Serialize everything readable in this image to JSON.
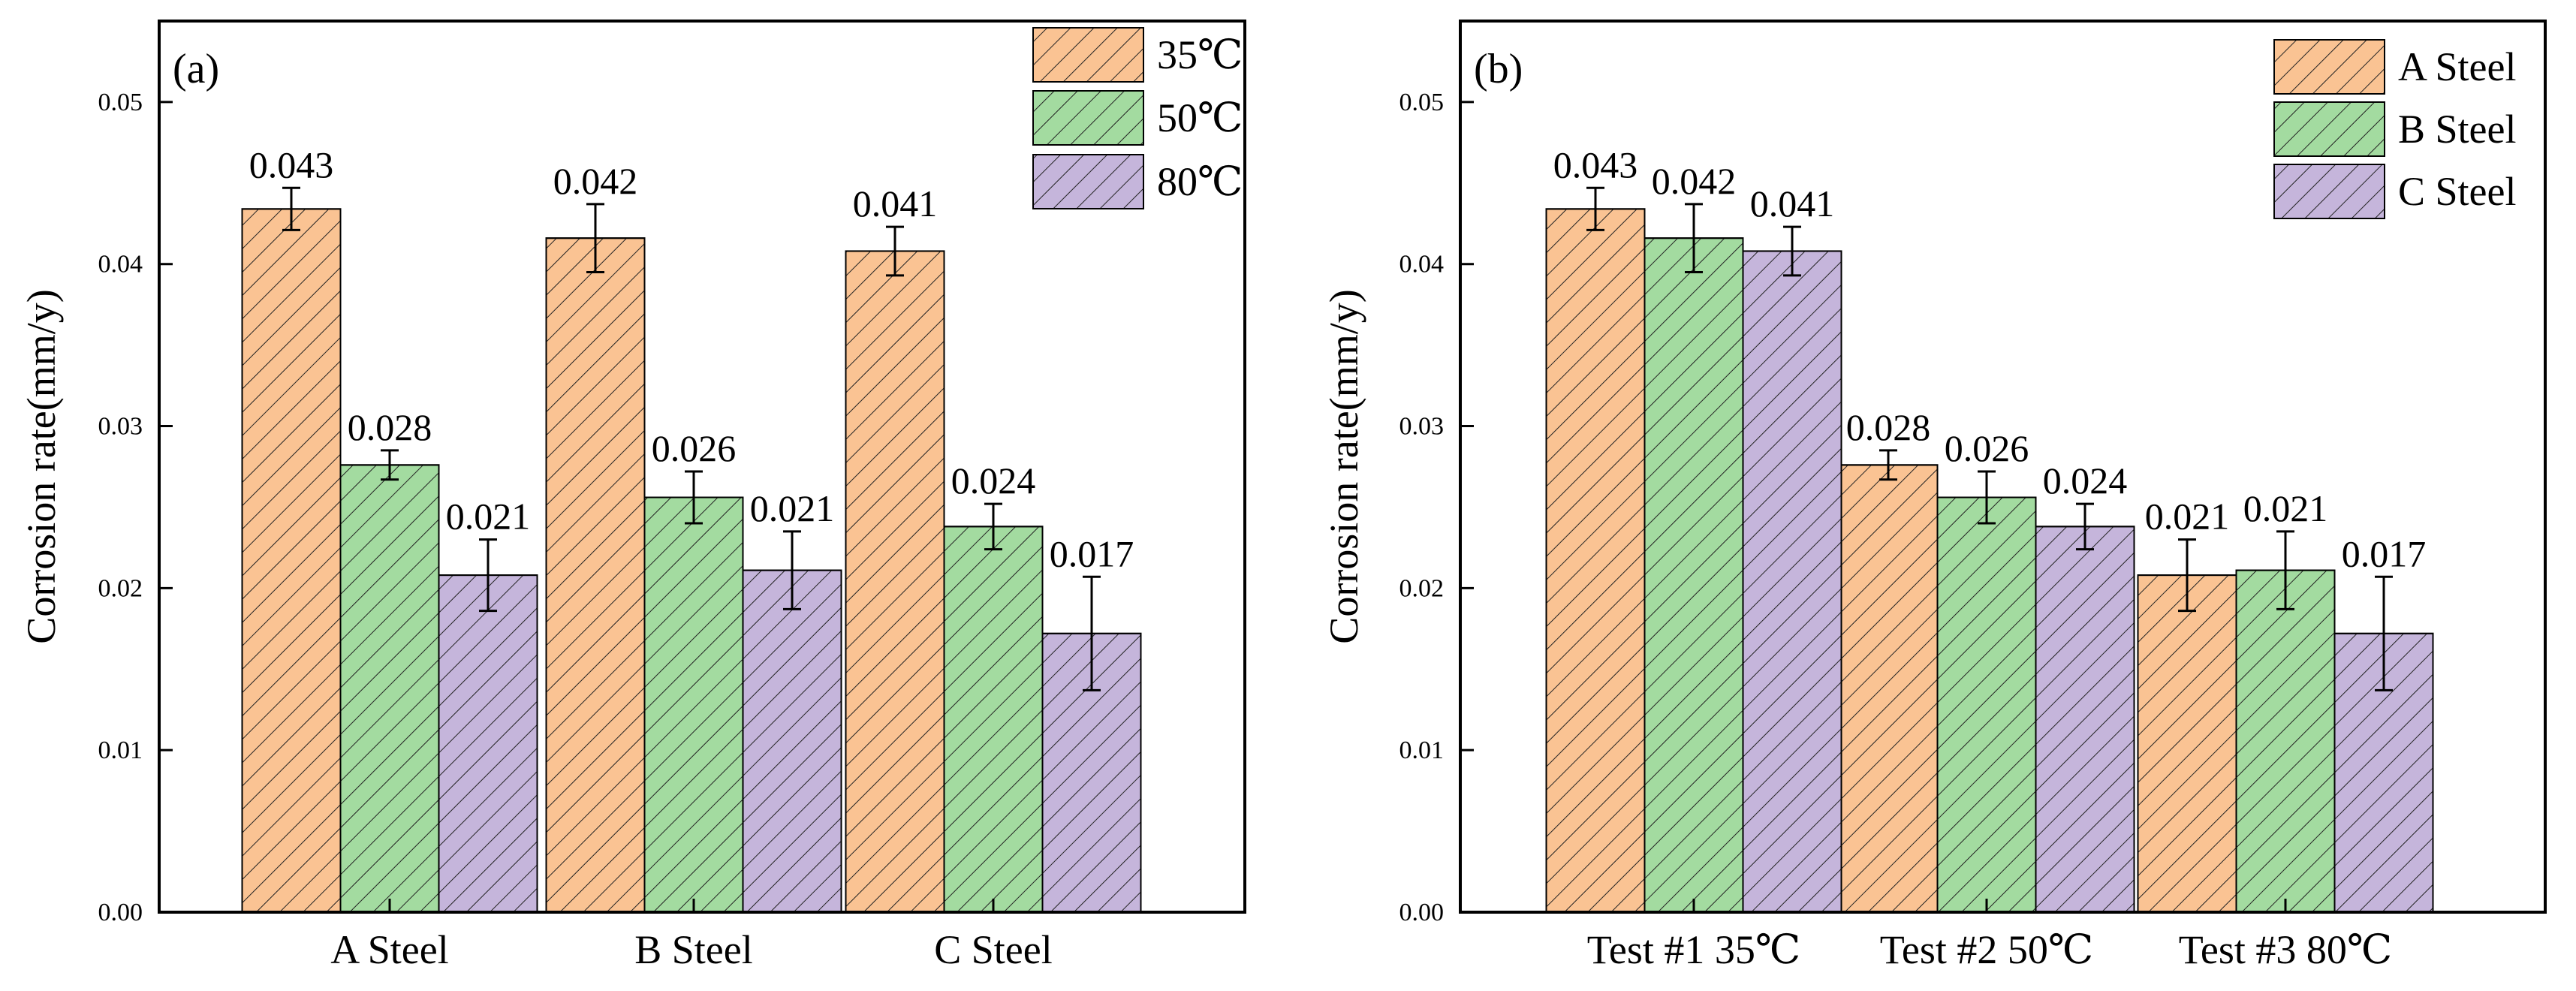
{
  "colors": {
    "c1": "#FAC393",
    "c2": "#A3DBA0",
    "c3": "#C5B5DB"
  },
  "chart_data": [
    {
      "type": "bar",
      "panel_label": "(a)",
      "ylabel": "Corrosion rate(mm/y)",
      "xlabel": "",
      "ylim": [
        0,
        0.055
      ],
      "yticks": [
        "0.00",
        "0.01",
        "0.02",
        "0.03",
        "0.04",
        "0.05"
      ],
      "ytick_values": [
        0,
        0.01,
        0.02,
        0.03,
        0.04,
        0.05
      ],
      "categories": [
        "A Steel",
        "B Steel",
        "C Steel"
      ],
      "legend_position": "top-right",
      "series": [
        {
          "name": "35℃",
          "values": [
            0.0434,
            0.0416,
            0.0408
          ],
          "errors": [
            0.0013,
            0.0021,
            0.0015
          ],
          "labels": [
            "0.043",
            "0.042",
            "0.041"
          ]
        },
        {
          "name": "50℃",
          "values": [
            0.0276,
            0.0256,
            0.0238
          ],
          "errors": [
            0.0009,
            0.0016,
            0.0014
          ],
          "labels": [
            "0.028",
            "0.026",
            "0.024"
          ]
        },
        {
          "name": "80℃",
          "values": [
            0.0208,
            0.0211,
            0.0172
          ],
          "errors": [
            0.0022,
            0.0024,
            0.0035
          ],
          "labels": [
            "0.021",
            "0.021",
            "0.017"
          ]
        }
      ]
    },
    {
      "type": "bar",
      "panel_label": "(b)",
      "ylabel": "Corrosion rate(mm/y)",
      "xlabel": "",
      "ylim": [
        0,
        0.055
      ],
      "yticks": [
        "0.00",
        "0.01",
        "0.02",
        "0.03",
        "0.04",
        "0.05"
      ],
      "ytick_values": [
        0,
        0.01,
        0.02,
        0.03,
        0.04,
        0.05
      ],
      "categories": [
        "Test #1 35℃",
        "Test #2 50℃",
        "Test #3 80℃"
      ],
      "legend_position": "top-right",
      "series": [
        {
          "name": "A Steel",
          "values": [
            0.0434,
            0.0276,
            0.0208
          ],
          "errors": [
            0.0013,
            0.0009,
            0.0022
          ],
          "labels": [
            "0.043",
            "0.028",
            "0.021"
          ]
        },
        {
          "name": "B Steel",
          "values": [
            0.0416,
            0.0256,
            0.0211
          ],
          "errors": [
            0.0021,
            0.0016,
            0.0024
          ],
          "labels": [
            "0.042",
            "0.026",
            "0.021"
          ]
        },
        {
          "name": "C Steel",
          "values": [
            0.0408,
            0.0238,
            0.0172
          ],
          "errors": [
            0.0015,
            0.0014,
            0.0035
          ],
          "labels": [
            "0.041",
            "0.024",
            "0.017"
          ]
        }
      ]
    }
  ]
}
